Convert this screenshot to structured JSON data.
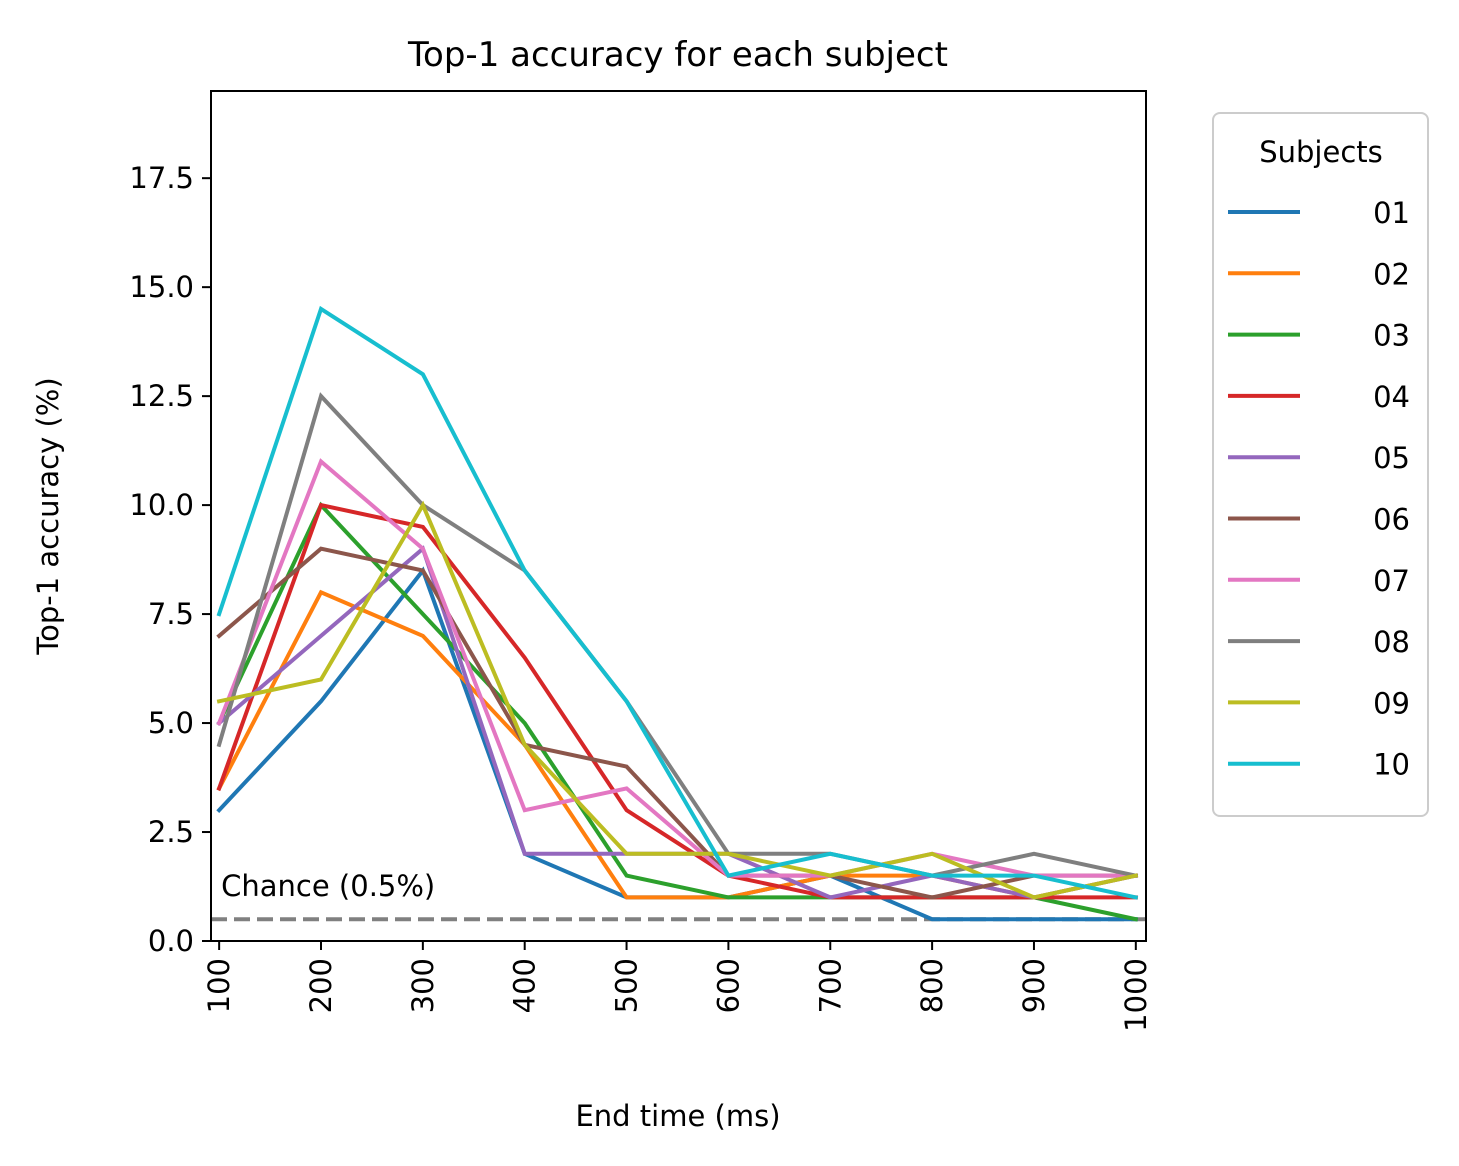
{
  "chart_data": {
    "type": "line",
    "title": "Top-1 accuracy for each subject",
    "xlabel": "End time (ms)",
    "ylabel": "Top-1 accuracy (%)",
    "x": [
      100,
      200,
      300,
      400,
      500,
      600,
      700,
      800,
      900,
      1000
    ],
    "x_tick_labels": [
      "100",
      "200",
      "300",
      "400",
      "500",
      "600",
      "700",
      "800",
      "900",
      "1000"
    ],
    "y_ticks": [
      0.0,
      2.5,
      5.0,
      7.5,
      10.0,
      12.5,
      15.0,
      17.5
    ],
    "y_tick_labels": [
      "0.0",
      "2.5",
      "5.0",
      "7.5",
      "10.0",
      "12.5",
      "15.0",
      "17.5"
    ],
    "xlim": [
      92,
      1010
    ],
    "ylim": [
      0,
      19.5
    ],
    "grid": false,
    "legend": {
      "title": "Subjects",
      "placement": "outside-right"
    },
    "chance": {
      "value": 0.5,
      "label": "Chance (0.5%)",
      "color": "#808080",
      "style": "dashed"
    },
    "series": [
      {
        "name": "01",
        "color": "#1f77b4",
        "values": [
          3.0,
          5.5,
          8.5,
          2.0,
          1.0,
          1.0,
          1.5,
          0.5,
          0.5,
          0.5
        ]
      },
      {
        "name": "02",
        "color": "#ff7f0e",
        "values": [
          3.5,
          8.0,
          7.0,
          4.5,
          1.0,
          1.0,
          1.5,
          1.5,
          1.0,
          1.5
        ]
      },
      {
        "name": "03",
        "color": "#2ca02c",
        "values": [
          5.0,
          10.0,
          7.5,
          5.0,
          1.5,
          1.0,
          1.0,
          1.0,
          1.0,
          0.5
        ]
      },
      {
        "name": "04",
        "color": "#d62728",
        "values": [
          3.5,
          10.0,
          9.5,
          6.5,
          3.0,
          1.5,
          1.0,
          1.0,
          1.0,
          1.0
        ]
      },
      {
        "name": "05",
        "color": "#9467bd",
        "values": [
          5.0,
          7.0,
          9.0,
          2.0,
          2.0,
          2.0,
          1.0,
          1.5,
          1.0,
          1.5
        ]
      },
      {
        "name": "06",
        "color": "#8c564b",
        "values": [
          7.0,
          9.0,
          8.5,
          4.5,
          4.0,
          1.5,
          1.5,
          1.0,
          1.5,
          1.5
        ]
      },
      {
        "name": "07",
        "color": "#e377c2",
        "values": [
          5.0,
          11.0,
          9.0,
          3.0,
          3.5,
          1.5,
          1.5,
          2.0,
          1.5,
          1.5
        ]
      },
      {
        "name": "08",
        "color": "#7f7f7f",
        "values": [
          4.5,
          12.5,
          10.0,
          8.5,
          5.5,
          2.0,
          2.0,
          1.5,
          2.0,
          1.5
        ]
      },
      {
        "name": "09",
        "color": "#bcbd22",
        "values": [
          5.5,
          6.0,
          10.0,
          4.5,
          2.0,
          2.0,
          1.5,
          2.0,
          1.0,
          1.5
        ]
      },
      {
        "name": "10",
        "color": "#17becf",
        "values": [
          7.5,
          14.5,
          13.0,
          8.5,
          5.5,
          1.5,
          2.0,
          1.5,
          1.5,
          1.0
        ]
      }
    ]
  }
}
